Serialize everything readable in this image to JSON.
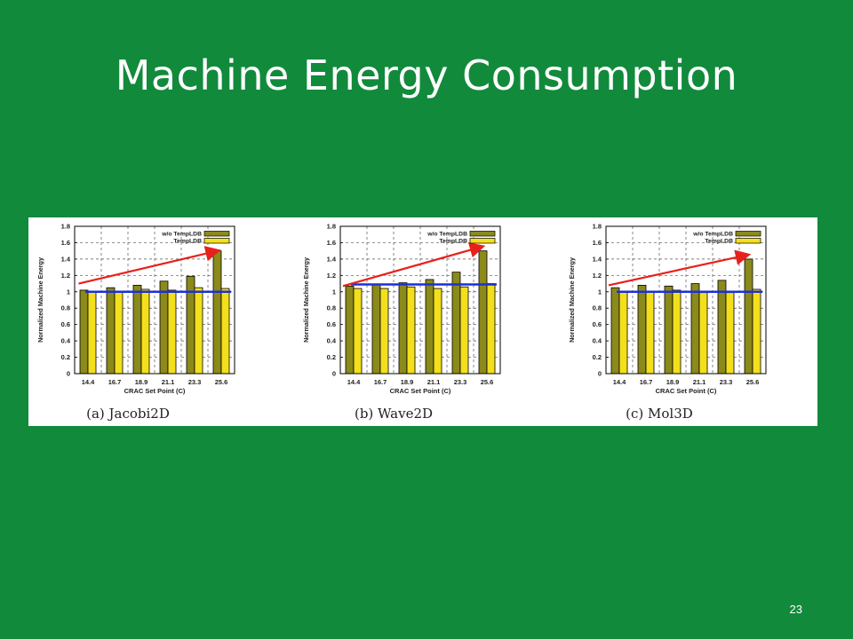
{
  "slide": {
    "title": "Machine Energy Consumption",
    "page_number": "23"
  },
  "colors": {
    "background": "#118a3b",
    "without_bar": "#8b8a1a",
    "with_bar": "#f3df1c",
    "trend_arrow": "#e8201c",
    "baseline": "#1f2fd6"
  },
  "chart_data": [
    {
      "type": "bar",
      "caption": "(a) Jacobi2D",
      "xlabel": "CRAC Set Point (C)",
      "ylabel": "Normalized Machine Energy",
      "categories": [
        "14.4",
        "16.7",
        "18.9",
        "21.1",
        "23.3",
        "25.6"
      ],
      "ylim": [
        0,
        1.8
      ],
      "yticks": [
        "0",
        "0.2",
        "0.4",
        "0.6",
        "0.8",
        "1",
        "1.2",
        "1.4",
        "1.6",
        "1.8"
      ],
      "grid": true,
      "legend_position": "top-right",
      "series": [
        {
          "name": "w/o TempLDB",
          "values": [
            1.02,
            1.05,
            1.08,
            1.13,
            1.19,
            1.5
          ]
        },
        {
          "name": "TempLDB",
          "values": [
            1.0,
            1.0,
            1.03,
            1.02,
            1.05,
            1.04
          ]
        }
      ],
      "annotations": {
        "baseline_y": 1.0,
        "arrow_from": [
          -0.35,
          1.1
        ],
        "arrow_to": [
          4.85,
          1.5
        ]
      }
    },
    {
      "type": "bar",
      "caption": "(b) Wave2D",
      "xlabel": "CRAC Set Point (C)",
      "ylabel": "Normalized Machine Energy",
      "categories": [
        "14.4",
        "16.7",
        "18.9",
        "21.1",
        "23.3",
        "25.6"
      ],
      "ylim": [
        0,
        1.8
      ],
      "yticks": [
        "0",
        "0.2",
        "0.4",
        "0.6",
        "0.8",
        "1",
        "1.2",
        "1.4",
        "1.6",
        "1.8"
      ],
      "grid": true,
      "legend_position": "top-right",
      "series": [
        {
          "name": "w/o TempLDB",
          "values": [
            1.07,
            1.09,
            1.11,
            1.15,
            1.24,
            1.5
          ]
        },
        {
          "name": "TempLDB",
          "values": [
            1.04,
            1.04,
            1.06,
            1.04,
            1.06,
            1.1
          ]
        }
      ],
      "annotations": {
        "baseline_y": 1.09,
        "arrow_from": [
          -0.4,
          1.07
        ],
        "arrow_to": [
          4.8,
          1.55
        ]
      }
    },
    {
      "type": "bar",
      "caption": "(c) Mol3D",
      "xlabel": "CRAC Set Point (C)",
      "ylabel": "Normalized Machine Energy",
      "categories": [
        "14.4",
        "16.7",
        "18.9",
        "21.1",
        "23.3",
        "25.6"
      ],
      "ylim": [
        0,
        1.8
      ],
      "yticks": [
        "0",
        "0.2",
        "0.4",
        "0.6",
        "0.8",
        "1",
        "1.2",
        "1.4",
        "1.6",
        "1.8"
      ],
      "grid": true,
      "legend_position": "top-right",
      "series": [
        {
          "name": "w/o TempLDB",
          "values": [
            1.05,
            1.08,
            1.07,
            1.1,
            1.14,
            1.4
          ]
        },
        {
          "name": "TempLDB",
          "values": [
            1.0,
            1.0,
            1.02,
            0.99,
            0.99,
            1.03
          ]
        }
      ],
      "annotations": {
        "baseline_y": 1.0,
        "arrow_from": [
          -0.4,
          1.08
        ],
        "arrow_to": [
          4.8,
          1.45
        ]
      }
    }
  ]
}
